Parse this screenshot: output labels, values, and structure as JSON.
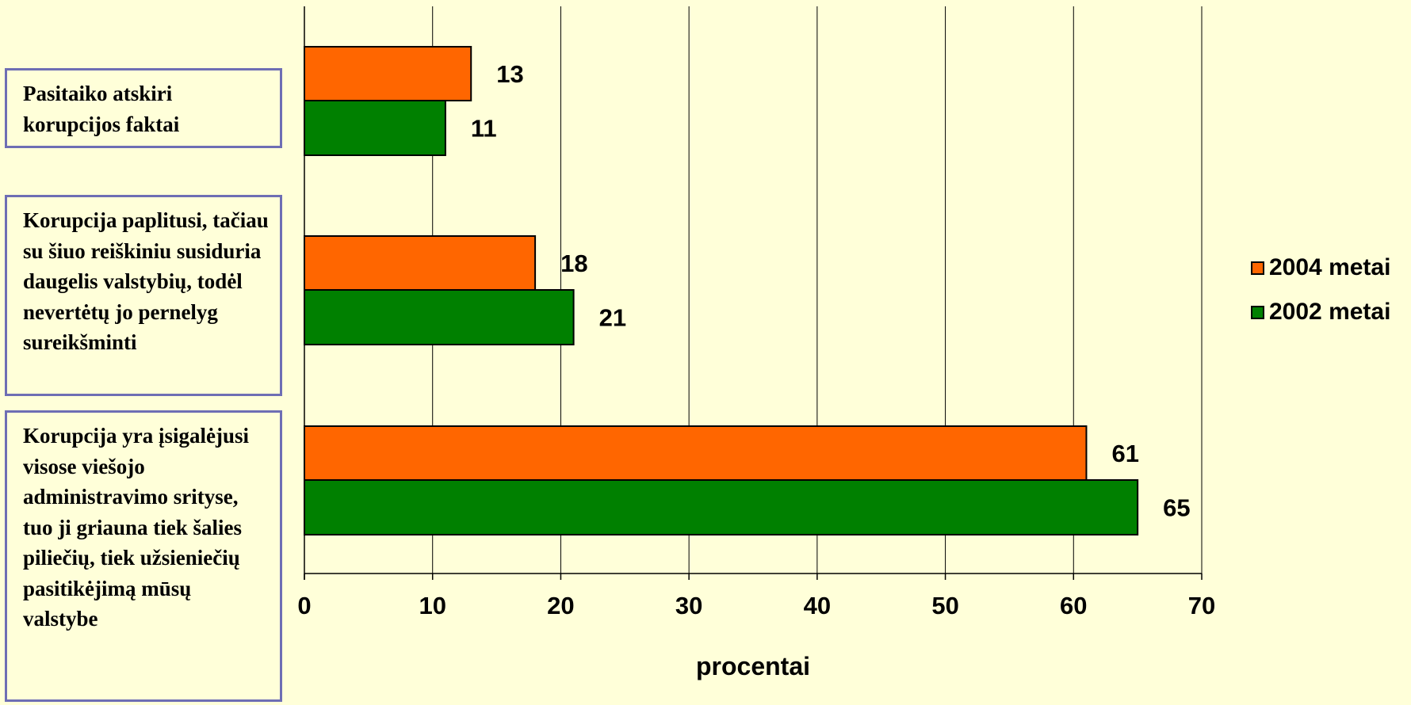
{
  "chart_data": {
    "type": "bar",
    "orientation": "horizontal",
    "categories": [
      "Pasitaiko atskiri korupcijos faktai",
      "Korupcija paplitusi, tačiau su šiuo reiškiniu susiduria daugelis valstybių, todėl nevertėtų jo pernelyg sureikšminti",
      "Korupcija yra įsigalėjusi visose viešojo administravimo srityse, tuo ji griauna tiek šalies piliečių, tiek užsieniečių pasitikėjimą mūsų valstybe"
    ],
    "series": [
      {
        "name": "2004 metai",
        "color": "#FF6600",
        "values": [
          13,
          18,
          61
        ]
      },
      {
        "name": "2002 metai",
        "color": "#008000",
        "values": [
          11,
          21,
          65
        ]
      }
    ],
    "xlabel": "procentai",
    "xlim": [
      0,
      70
    ],
    "xticks": [
      0,
      10,
      20,
      30,
      40,
      50,
      60,
      70
    ],
    "grid": "vertical",
    "legend_position": "right"
  }
}
